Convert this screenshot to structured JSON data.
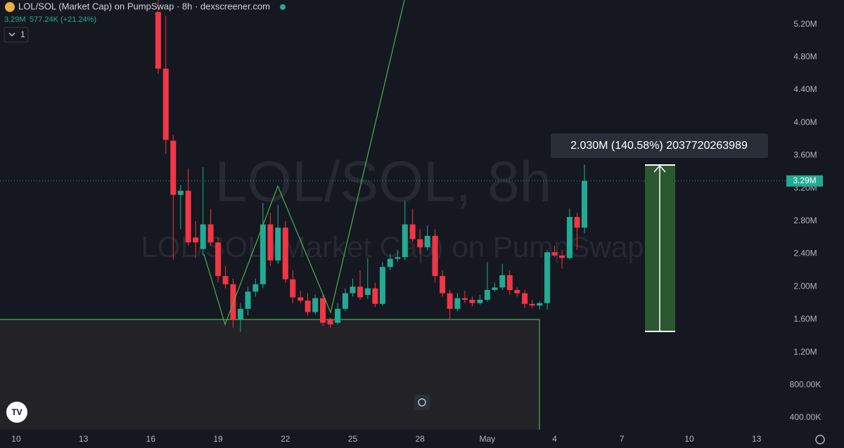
{
  "chart_data": {
    "type": "candlestick",
    "title": "LOL/SOL (Market Cap) on PumpSwap · 8h · dexscreener.com",
    "last_value": "3.29M",
    "change": "577.24K (+21.24%)",
    "interval_button": "1",
    "watermark": "LOL/SOL, 8h",
    "watermark_subtitle": "LOL/SOL (Market Cap) on PumpSwap",
    "measure_label": "2.030M (140.58%) 2037720263989",
    "up_color": "#22ab94",
    "down_color": "#f23645",
    "grid": false,
    "xlim": [
      9.28,
      44.39
    ],
    "xticks": [
      10,
      13,
      16,
      19,
      22,
      25,
      28,
      {
        "value": 31,
        "label": "May"
      },
      {
        "value": 34,
        "label": "4"
      },
      {
        "value": 37,
        "label": "7"
      },
      {
        "value": 40,
        "label": "10"
      },
      {
        "value": 43,
        "label": "13"
      }
    ],
    "ylim": [
      255000,
      5497000
    ],
    "yticks": [
      {
        "value": 400000,
        "label": "400.00K"
      },
      {
        "value": 800000,
        "label": "800.00K"
      },
      {
        "value": 1200000,
        "label": "1.20M"
      },
      {
        "value": 1600000,
        "label": "1.60M"
      },
      {
        "value": 2000000,
        "label": "2.00M"
      },
      {
        "value": 2400000,
        "label": "2.40M"
      },
      {
        "value": 2800000,
        "label": "2.80M"
      },
      {
        "value": 3200000,
        "label": "3.20M"
      },
      {
        "value": 3600000,
        "label": "3.60M"
      },
      {
        "value": 4000000,
        "label": "4.00M"
      },
      {
        "value": 4400000,
        "label": "4.40M"
      },
      {
        "value": 4800000,
        "label": "4.80M"
      },
      {
        "value": 5200000,
        "label": "5.20M"
      }
    ],
    "last_price": {
      "value": 3290000,
      "label": "3.29M"
    },
    "x": [
      16.33,
      16.67,
      17,
      17.33,
      17.67,
      18,
      18.33,
      18.67,
      19,
      19.33,
      19.67,
      20,
      20.33,
      20.67,
      21,
      21.33,
      21.67,
      22,
      22.33,
      22.67,
      23,
      23.33,
      23.67,
      24,
      24.33,
      24.67,
      25,
      25.33,
      25.67,
      26,
      26.33,
      26.67,
      27,
      27.33,
      27.67,
      28,
      28.33,
      28.67,
      29,
      29.33,
      29.67,
      30,
      30.33,
      30.67,
      31,
      31.33,
      31.67,
      32,
      32.33,
      32.67,
      33,
      33.33,
      33.67,
      34,
      34.33,
      34.67,
      35,
      35.33
    ],
    "open": [
      5350000,
      4660000,
      3780000,
      3120000,
      3170000,
      2600000,
      2460000,
      2760000,
      2540000,
      2130000,
      2030000,
      1600000,
      1730000,
      1940000,
      2030000,
      2760000,
      2320000,
      2720000,
      2090000,
      1870000,
      1830000,
      1690000,
      1860000,
      1600000,
      1560000,
      1730000,
      1920000,
      2000000,
      1900000,
      1980000,
      1790000,
      2240000,
      2340000,
      2360000,
      2760000,
      2580000,
      2480000,
      2620000,
      2130000,
      1920000,
      1730000,
      1860000,
      1840000,
      1800000,
      1840000,
      1960000,
      1990000,
      2140000,
      1960000,
      1920000,
      1790000,
      1770000,
      1800000,
      2420000,
      2380000,
      2350000,
      2850000,
      2720000
    ],
    "high": [
      5500000,
      5300000,
      3850000,
      3240000,
      3440000,
      2800000,
      3460000,
      2950000,
      2600000,
      2250000,
      2100000,
      1800000,
      2000000,
      2100000,
      3020000,
      2900000,
      3000000,
      2800000,
      2200000,
      1950000,
      1920000,
      1900000,
      1900000,
      1620000,
      1800000,
      1980000,
      2100000,
      2200000,
      2350000,
      2050000,
      2300000,
      2400000,
      2450000,
      3050000,
      2950000,
      2700000,
      2750000,
      2700000,
      2200000,
      1960000,
      1920000,
      1950000,
      1880000,
      1900000,
      2300000,
      2050000,
      2280000,
      2200000,
      1990000,
      1960000,
      1840000,
      1820000,
      2450000,
      2500000,
      2450000,
      2950000,
      2900000,
      3490000
    ],
    "low": [
      4600000,
      3620000,
      2330000,
      2700000,
      2500000,
      2350000,
      2380000,
      2500000,
      2050000,
      1980000,
      1500000,
      1450000,
      1650000,
      1880000,
      1980000,
      2250000,
      2280000,
      2050000,
      1800000,
      1800000,
      1650000,
      1660000,
      1520000,
      1500000,
      1540000,
      1700000,
      1880000,
      1840000,
      1850000,
      1750000,
      1770000,
      2200000,
      2300000,
      2320000,
      2550000,
      2400000,
      2440000,
      2050000,
      1880000,
      1600000,
      1700000,
      1800000,
      1760000,
      1780000,
      1820000,
      1940000,
      1960000,
      1900000,
      1880000,
      1740000,
      1740000,
      1720000,
      1720000,
      2360000,
      2220000,
      2330000,
      2450000,
      2650000
    ],
    "close": [
      4660000,
      3790000,
      3120000,
      3170000,
      2540000,
      2540000,
      2760000,
      2540000,
      2130000,
      2030000,
      1600000,
      1730000,
      1940000,
      2030000,
      2760000,
      2320000,
      2720000,
      2090000,
      1870000,
      1830000,
      1690000,
      1860000,
      1560000,
      1540000,
      1730000,
      1920000,
      2000000,
      1870000,
      1980000,
      1790000,
      2240000,
      2340000,
      2360000,
      2760000,
      2580000,
      2480000,
      2620000,
      2130000,
      1920000,
      1730000,
      1860000,
      1840000,
      1800000,
      1840000,
      1960000,
      1990000,
      2140000,
      1960000,
      1920000,
      1790000,
      1770000,
      1800000,
      2420000,
      2380000,
      2350000,
      2850000,
      2720000,
      3290000
    ]
  }
}
